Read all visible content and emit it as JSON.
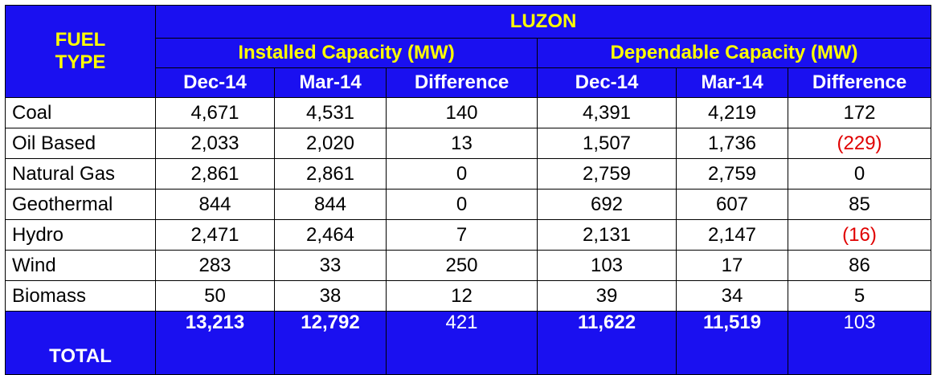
{
  "table": {
    "region": "LUZON",
    "fuel_type_header": [
      "FUEL",
      "TYPE"
    ],
    "groups": [
      "Installed Capacity (MW)",
      "Dependable Capacity (MW)"
    ],
    "columns": [
      "Dec-14",
      "Mar-14",
      "Difference",
      "Dec-14",
      "Mar-14",
      "Difference"
    ],
    "rows": [
      [
        "Coal",
        "4,671",
        "4,531",
        "140",
        "4,391",
        "4,219",
        "172"
      ],
      [
        "Oil Based",
        "2,033",
        "2,020",
        "13",
        "1,507",
        "1,736",
        "(229)"
      ],
      [
        "Natural Gas",
        "2,861",
        "2,861",
        "0",
        "2,759",
        "2,759",
        "0"
      ],
      [
        "Geothermal",
        "844",
        "844",
        "0",
        "692",
        "607",
        "85"
      ],
      [
        "Hydro",
        "2,471",
        "2,464",
        "7",
        "2,131",
        "2,147",
        "(16)"
      ],
      [
        "Wind",
        "283",
        "33",
        "250",
        "103",
        "17",
        "86"
      ],
      [
        "Biomass",
        "50",
        "38",
        "12",
        "39",
        "34",
        "5"
      ]
    ],
    "total": [
      "TOTAL",
      "13,213",
      "12,792",
      "421",
      "11,622",
      "11,519",
      "103"
    ]
  }
}
